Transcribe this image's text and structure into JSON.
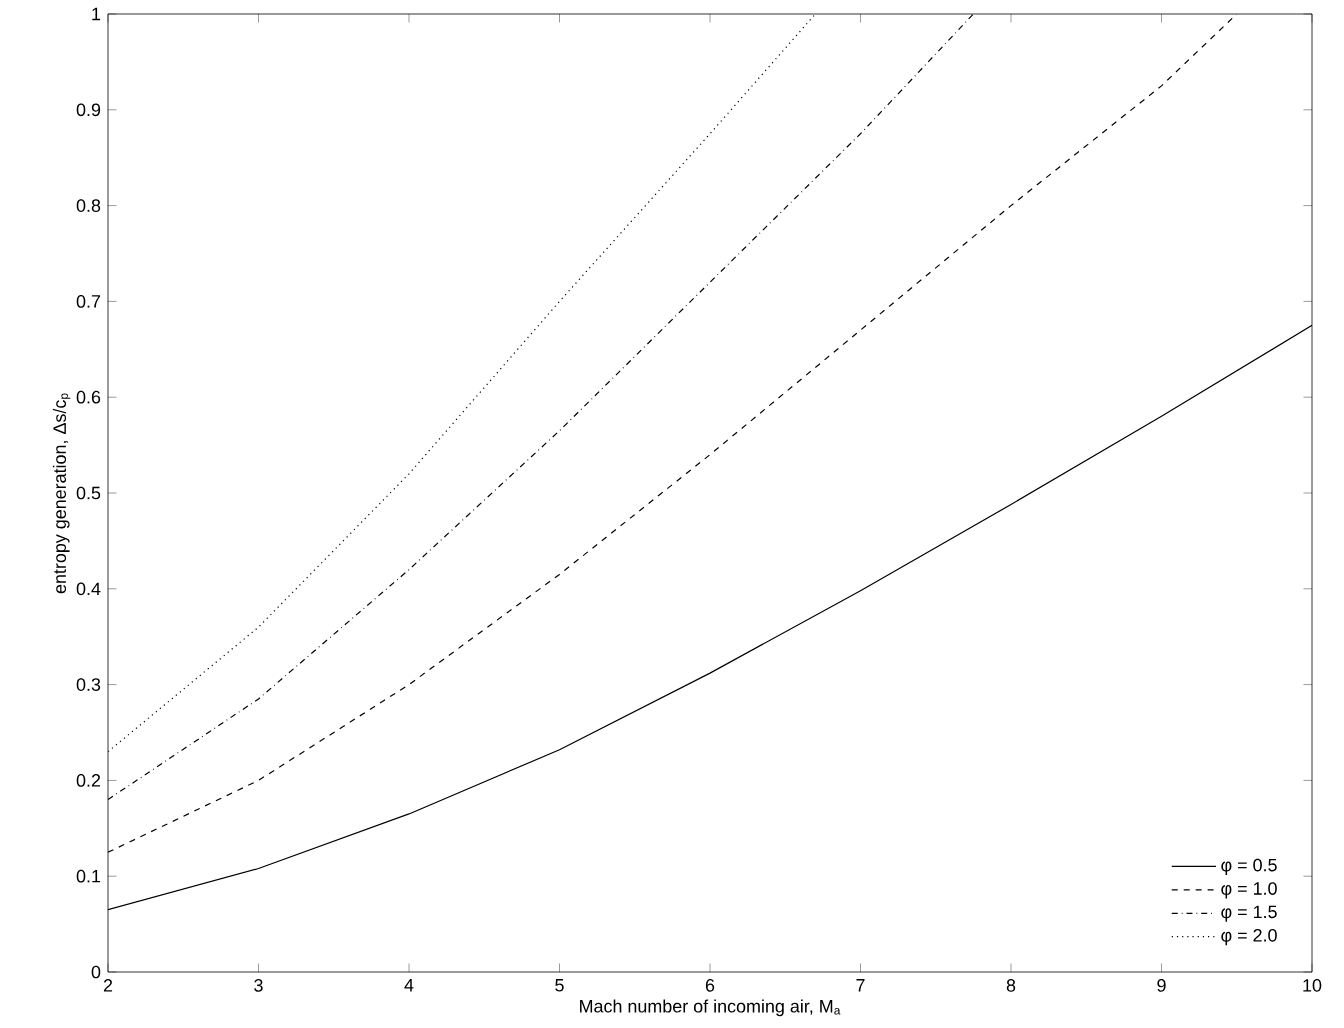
{
  "chart_data": {
    "type": "line",
    "xlabel": "Mach number of incoming air, M$_{a}$",
    "ylabel": "entropy generation, Δs/c$_{p}$",
    "xlim": [
      2,
      10
    ],
    "ylim": [
      0,
      1
    ],
    "xticks": [
      2,
      3,
      4,
      5,
      6,
      7,
      8,
      9,
      10
    ],
    "yticks": [
      0,
      0.1,
      0.2,
      0.3,
      0.4,
      0.5,
      0.6,
      0.7,
      0.8,
      0.9,
      1
    ],
    "legend": "bottom right",
    "grid": false,
    "series": [
      {
        "name": "φ = 0.5",
        "color": "#000000",
        "line_style": "solid",
        "x": [
          2,
          3,
          4,
          5,
          6,
          7,
          8,
          9,
          10
        ],
        "values": [
          0.065,
          0.108,
          0.165,
          0.232,
          0.312,
          0.398,
          0.488,
          0.58,
          0.675
        ]
      },
      {
        "name": "φ = 1.0",
        "color": "#000000",
        "line_style": "dashed",
        "x": [
          2,
          3,
          4,
          5,
          6,
          7,
          8,
          9,
          9.5
        ],
        "values": [
          0.125,
          0.2,
          0.3,
          0.415,
          0.54,
          0.67,
          0.8,
          0.925,
          1
        ]
      },
      {
        "name": "φ = 1.5",
        "color": "#000000",
        "line_style": "dashdot",
        "x": [
          2,
          3,
          4,
          5,
          6,
          7,
          7.75
        ],
        "values": [
          0.18,
          0.285,
          0.42,
          0.565,
          0.72,
          0.875,
          1
        ]
      },
      {
        "name": "φ = 2.0",
        "color": "#000000",
        "line_style": "dotted",
        "x": [
          2,
          3,
          4,
          5,
          6,
          6.7
        ],
        "values": [
          0.23,
          0.36,
          0.52,
          0.7,
          0.875,
          1
        ]
      }
    ]
  }
}
